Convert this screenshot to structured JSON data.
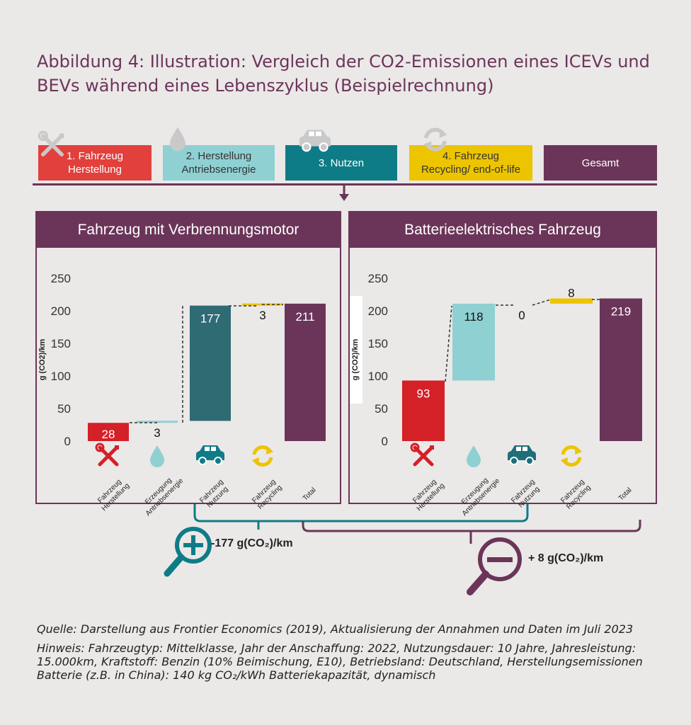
{
  "title": "Abbildung 4: Illustration: Vergleich der CO2-Emissionen eines ICEVs und BEVs während eines Lebenszyklus (Beispielrechnung)",
  "legend": [
    {
      "label": "1. Fahrzeug\nHerstellung",
      "color": "#e2403c",
      "text_color": "#ffffff",
      "icon": "wrench-screwdriver-icon"
    },
    {
      "label": "2. Herstellung\nAntriebsenergie",
      "color": "#8fd0d3",
      "text_color": "#333333",
      "icon": "water-drop-icon"
    },
    {
      "label": "3. Nutzen",
      "color": "#0e7c86",
      "text_color": "#ffffff",
      "icon": "car-icon"
    },
    {
      "label": "4. Fahrzeug\nRecycling/ end-of-life",
      "color": "#ecc400",
      "text_color": "#333333",
      "icon": "recycle-icon"
    },
    {
      "label": "Gesamt",
      "color": "#6b3559",
      "text_color": "#ffffff",
      "icon": ""
    }
  ],
  "colors": {
    "manufacturing": "#d42027",
    "energy": "#8fd0d3",
    "usage_icev": "#2f6b73",
    "usage_bev_icon": "#1d6f7a",
    "recycling": "#ecc400",
    "total": "#6b3559",
    "accent": "#6b3559",
    "teal": "#0e7c86"
  },
  "chart_data": [
    {
      "type": "bar",
      "title": "Fahrzeug mit Verbrennungsmotor",
      "ylabel": "g (CO2)/km",
      "ylim": [
        0,
        250
      ],
      "yticks": [
        0,
        50,
        100,
        150,
        200,
        250
      ],
      "categories": [
        "Fahrzeug\nHerstellung",
        "Erzeugung\nAntriebsenergie",
        "Fahrzeug\nNutzung",
        "Fahrzeug\nRecycling",
        "Total"
      ],
      "values": [
        28,
        3,
        177,
        3,
        211
      ],
      "labels": [
        "28",
        "3",
        "177",
        "3",
        "211"
      ]
    },
    {
      "type": "bar",
      "title": "Batterieelektrisches Fahrzeug",
      "ylabel": "g (CO2)/km",
      "ylim": [
        0,
        250
      ],
      "yticks": [
        0,
        50,
        100,
        150,
        200,
        250
      ],
      "categories": [
        "Fahrzeug\nHerstellung",
        "Erzeugung\nAntriebsenergie",
        "Fahrzeug\nNutzung",
        "Fahrzeug\nRecycling",
        "Total"
      ],
      "values": [
        93,
        118,
        0,
        8,
        219
      ],
      "labels": [
        "93",
        "118",
        "0",
        "8",
        "219"
      ]
    }
  ],
  "summary": {
    "plus": "-177 g(CO₂)/km",
    "minus": "+ 8 g(CO₂)/km"
  },
  "notes": {
    "source": "Quelle: Darstellung aus Frontier Economics (2019), Aktualisierung der Annahmen und Daten im Juli 2023",
    "hint": "Hinweis: Fahrzeugtyp: Mittelklasse, Jahr der Anschaffung: 2022, Nutzungsdauer: 10 Jahre, Jahresleistung: 15.000km, Kraftstoff: Benzin (10% Beimischung, E10), Betriebsland: Deutschland, Herstellungsemissionen Batterie (z.B. in China): 140 kg CO₂/kWh Batteriekapazität, dynamisch"
  }
}
